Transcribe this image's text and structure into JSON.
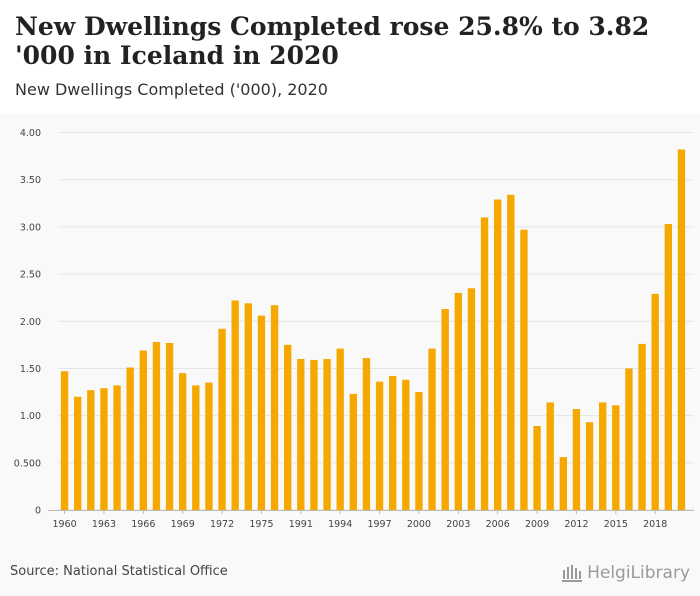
{
  "title": "New Dwellings Completed rose 25.8% to 3.82 '000 in Iceland in 2020",
  "subtitle": "New Dwellings Completed ('000), 2020",
  "source": "Source: National Statistical Office",
  "logo_text": "HelgiLibrary",
  "colors": {
    "bar": "#f5a800",
    "grid": "#e4e4e4",
    "background": "#f9f9f9"
  },
  "chart_data": {
    "type": "bar",
    "title": "New Dwellings Completed rose 25.8% to 3.82 '000 in Iceland in 2020",
    "subtitle": "New Dwellings Completed ('000), 2020",
    "xlabel": "",
    "ylabel": "",
    "ylim": [
      0,
      4.0
    ],
    "grid": true,
    "yticks": [
      "0",
      "0.500",
      "1.00",
      "1.50",
      "2.00",
      "2.50",
      "3.00",
      "3.50",
      "4.00"
    ],
    "xtick_labels": [
      "1960",
      "1963",
      "1966",
      "1969",
      "1972",
      "1975",
      "1991",
      "1994",
      "1997",
      "2000",
      "2003",
      "2006",
      "2009",
      "2012",
      "2015",
      "2018"
    ],
    "xtick_positions": [
      0,
      3,
      6,
      9,
      12,
      15,
      18,
      21,
      24,
      27,
      30,
      33,
      36,
      39,
      42,
      45
    ],
    "values": [
      1.47,
      1.2,
      1.27,
      1.29,
      1.32,
      1.51,
      1.69,
      1.78,
      1.77,
      1.45,
      1.32,
      1.35,
      1.92,
      2.22,
      2.19,
      2.06,
      2.17,
      1.75,
      1.6,
      1.59,
      1.6,
      1.71,
      1.23,
      1.61,
      1.36,
      1.42,
      1.38,
      1.25,
      1.71,
      2.13,
      2.3,
      2.35,
      3.1,
      3.29,
      3.34,
      2.97,
      0.89,
      1.14,
      0.56,
      1.07,
      0.93,
      1.14,
      1.11,
      1.5,
      1.76,
      2.29,
      3.03,
      3.82
    ]
  }
}
